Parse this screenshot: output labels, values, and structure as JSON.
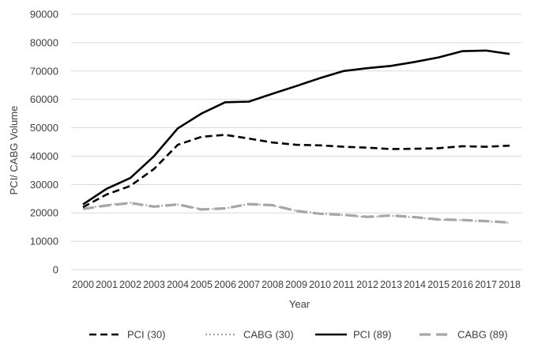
{
  "chart_data": {
    "type": "line",
    "title": "",
    "xlabel": "Year",
    "ylabel": "PCI/ CABG Volume",
    "ylim": [
      0,
      90000
    ],
    "yticks": [
      0,
      10000,
      20000,
      30000,
      40000,
      50000,
      60000,
      70000,
      80000,
      90000
    ],
    "categories": [
      "2000",
      "2001",
      "2002",
      "2003",
      "2004",
      "2005",
      "2006",
      "2007",
      "2008",
      "2009",
      "2010",
      "2011",
      "2012",
      "2013",
      "2014",
      "2015",
      "2016",
      "2017",
      "2018"
    ],
    "grid": true,
    "legend_position": "bottom",
    "series": [
      {
        "name": "PCI (30)",
        "style": "dashed",
        "color": "#000000",
        "values": [
          22000,
          26500,
          29500,
          35500,
          44000,
          46800,
          47500,
          46200,
          44800,
          44000,
          43800,
          43300,
          43000,
          42500,
          42600,
          42800,
          43500,
          43300,
          43700
        ]
      },
      {
        "name": "CABG (30)",
        "style": "dotted",
        "color": "#a6a6a6",
        "values": [
          21500,
          22800,
          23600,
          22300,
          23000,
          21300,
          21500,
          23200,
          22600,
          20800,
          19800,
          19200,
          18500,
          19000,
          18400,
          17600,
          17400,
          17000,
          16500
        ]
      },
      {
        "name": "PCI (89)",
        "style": "solid",
        "color": "#000000",
        "values": [
          23000,
          28500,
          32300,
          40000,
          49800,
          55000,
          59000,
          59200,
          62000,
          64700,
          67500,
          70000,
          71000,
          71800,
          73200,
          74800,
          77000,
          77200,
          76000
        ]
      },
      {
        "name": "CABG (89)",
        "style": "longdash",
        "color": "#a6a6a6",
        "values": [
          21400,
          22600,
          23500,
          22200,
          23000,
          21200,
          21600,
          23100,
          22700,
          20700,
          19700,
          19300,
          18600,
          19100,
          18500,
          17700,
          17500,
          17100,
          16600
        ]
      }
    ]
  }
}
